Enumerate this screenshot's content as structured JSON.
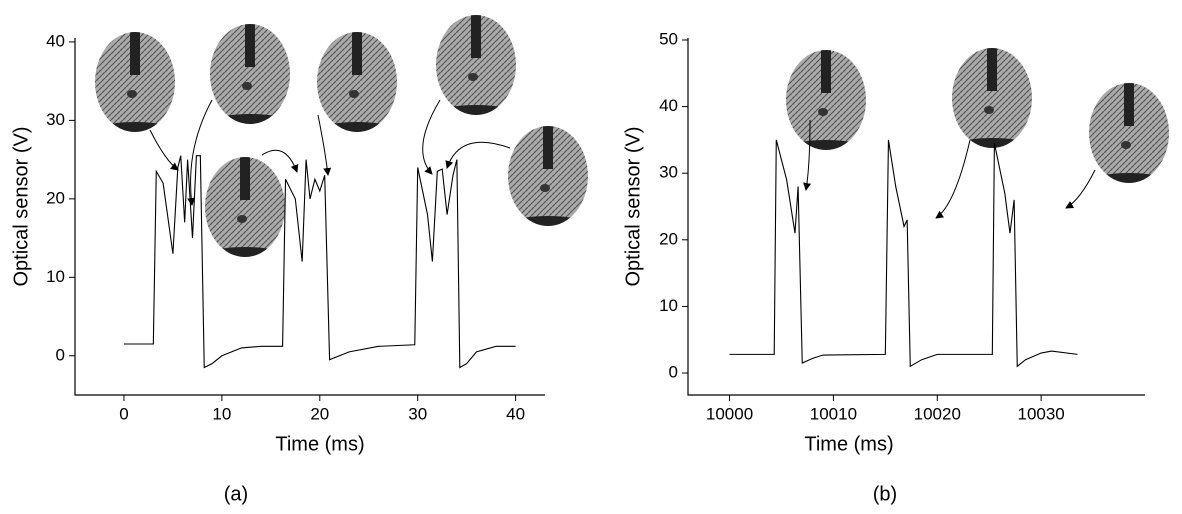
{
  "chart_data": [
    {
      "type": "line",
      "panel_label": "(a)",
      "x_label": "Time (ms)",
      "y_label": "Optical sensor (V)",
      "xlim": [
        -5,
        43
      ],
      "xticks": [
        0,
        10,
        20,
        30,
        40
      ],
      "ylim": [
        -5,
        40.5
      ],
      "yticks": [
        0,
        10,
        20,
        30,
        40
      ],
      "color": "#000000",
      "x": [
        0,
        3.0,
        3.3,
        4.0,
        5.0,
        5.5,
        5.8,
        6.2,
        6.5,
        7.0,
        7.4,
        7.8,
        8.2,
        9,
        10,
        12,
        14,
        16.2,
        16.5,
        17.5,
        18.2,
        18.6,
        19,
        19.5,
        20,
        20.5,
        21,
        23,
        26,
        29.7,
        30,
        31,
        31.5,
        32.0,
        32.5,
        33,
        33.6,
        34,
        34.3,
        35,
        36,
        38,
        40
      ],
      "values": [
        1.5,
        1.5,
        23.5,
        22,
        13,
        24,
        25.5,
        17,
        25,
        15,
        25.5,
        25.5,
        -1.5,
        -1,
        0,
        1,
        1.2,
        1.2,
        22.5,
        20,
        12,
        25,
        20,
        22.5,
        21,
        23,
        -0.5,
        0.5,
        1.2,
        1.4,
        24,
        18,
        12,
        23.5,
        23.8,
        18,
        23,
        25,
        -1.5,
        -1,
        0.5,
        1.2,
        1.2
      ]
    },
    {
      "type": "line",
      "panel_label": "(b)",
      "x_label": "Time (ms)",
      "y_label": "Optical sensor (V)",
      "xlim": [
        9996,
        10040
      ],
      "xticks": [
        10000,
        10010,
        10020,
        10030
      ],
      "ylim": [
        -3.3,
        50.3
      ],
      "yticks": [
        0,
        10,
        20,
        30,
        40,
        50
      ],
      "color": "#000000",
      "x": [
        10000,
        10004.3,
        10004.5,
        10005.5,
        10006.3,
        10006.6,
        10007,
        10008,
        10009,
        10015.0,
        10015.3,
        10016,
        10016.8,
        10017.1,
        10017.4,
        10018.5,
        10020,
        10025.3,
        10025.5,
        10026.5,
        10027,
        10027.4,
        10027.7,
        10028.5,
        10030,
        10031,
        10033.5
      ],
      "values": [
        2.8,
        2.8,
        35,
        29,
        21,
        28,
        1.5,
        2.2,
        2.7,
        2.8,
        35,
        28,
        22,
        23,
        1,
        2,
        2.8,
        2.8,
        34.5,
        27,
        21,
        26,
        1,
        2,
        3,
        3.3,
        2.8
      ]
    }
  ]
}
